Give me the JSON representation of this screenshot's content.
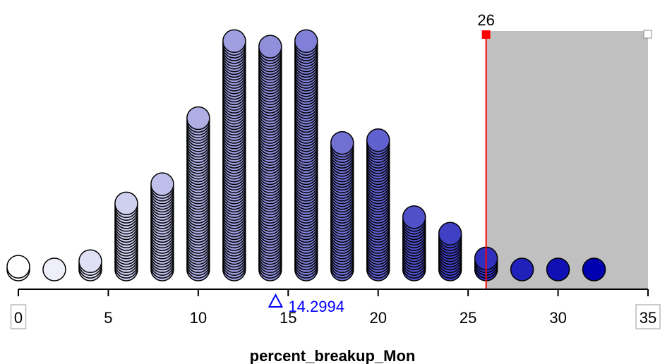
{
  "chart_data": {
    "type": "dotplot",
    "xlabel": "percent_breakup_Mon",
    "xlim": [
      0,
      35
    ],
    "ticks": [
      "0",
      "5",
      "10",
      "15",
      "20",
      "25",
      "30",
      "35"
    ],
    "bins": [
      {
        "x": 0,
        "count": 2
      },
      {
        "x": 2,
        "count": 1
      },
      {
        "x": 4,
        "count": 4
      },
      {
        "x": 6,
        "count": 25
      },
      {
        "x": 8,
        "count": 32
      },
      {
        "x": 10,
        "count": 56
      },
      {
        "x": 12,
        "count": 84
      },
      {
        "x": 14,
        "count": 82
      },
      {
        "x": 16,
        "count": 84
      },
      {
        "x": 18,
        "count": 47
      },
      {
        "x": 20,
        "count": 48
      },
      {
        "x": 22,
        "count": 20
      },
      {
        "x": 24,
        "count": 14
      },
      {
        "x": 26,
        "count": 5
      },
      {
        "x": 28,
        "count": 1
      },
      {
        "x": 30,
        "count": 1
      },
      {
        "x": 32,
        "count": 1
      }
    ],
    "median_marker": {
      "value": 14.2994,
      "label": "14.2994",
      "color": "#0000ff"
    },
    "cutoff": {
      "value": 26,
      "label": "26",
      "color": "#ff0000"
    },
    "selected_region": {
      "from": 26,
      "to": 35,
      "color": "#c0c0c0"
    },
    "color_scale": {
      "low": "#ffffff",
      "high": "#0000b0"
    }
  }
}
